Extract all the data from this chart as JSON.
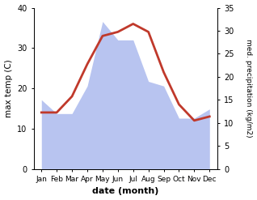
{
  "months": [
    "Jan",
    "Feb",
    "Mar",
    "Apr",
    "May",
    "Jun",
    "Jul",
    "Aug",
    "Sep",
    "Oct",
    "Nov",
    "Dec"
  ],
  "temperature": [
    14,
    14,
    18,
    26,
    33,
    34,
    36,
    34,
    24,
    16,
    12,
    13
  ],
  "precipitation": [
    15,
    12,
    12,
    18,
    32,
    28,
    28,
    19,
    18,
    11,
    11,
    13
  ],
  "temp_color": "#c0392b",
  "precip_fill_color": "#b8c4f0",
  "temp_ylim": [
    0,
    40
  ],
  "precip_ylim": [
    0,
    35
  ],
  "temp_yticks": [
    0,
    10,
    20,
    30,
    40
  ],
  "precip_yticks": [
    0,
    5,
    10,
    15,
    20,
    25,
    30,
    35
  ],
  "xlabel": "date (month)",
  "ylabel_left": "max temp (C)",
  "ylabel_right": "med. precipitation (kg/m2)",
  "background_color": "#ffffff",
  "temp_linewidth": 2.0,
  "fill_alpha": 1.0
}
